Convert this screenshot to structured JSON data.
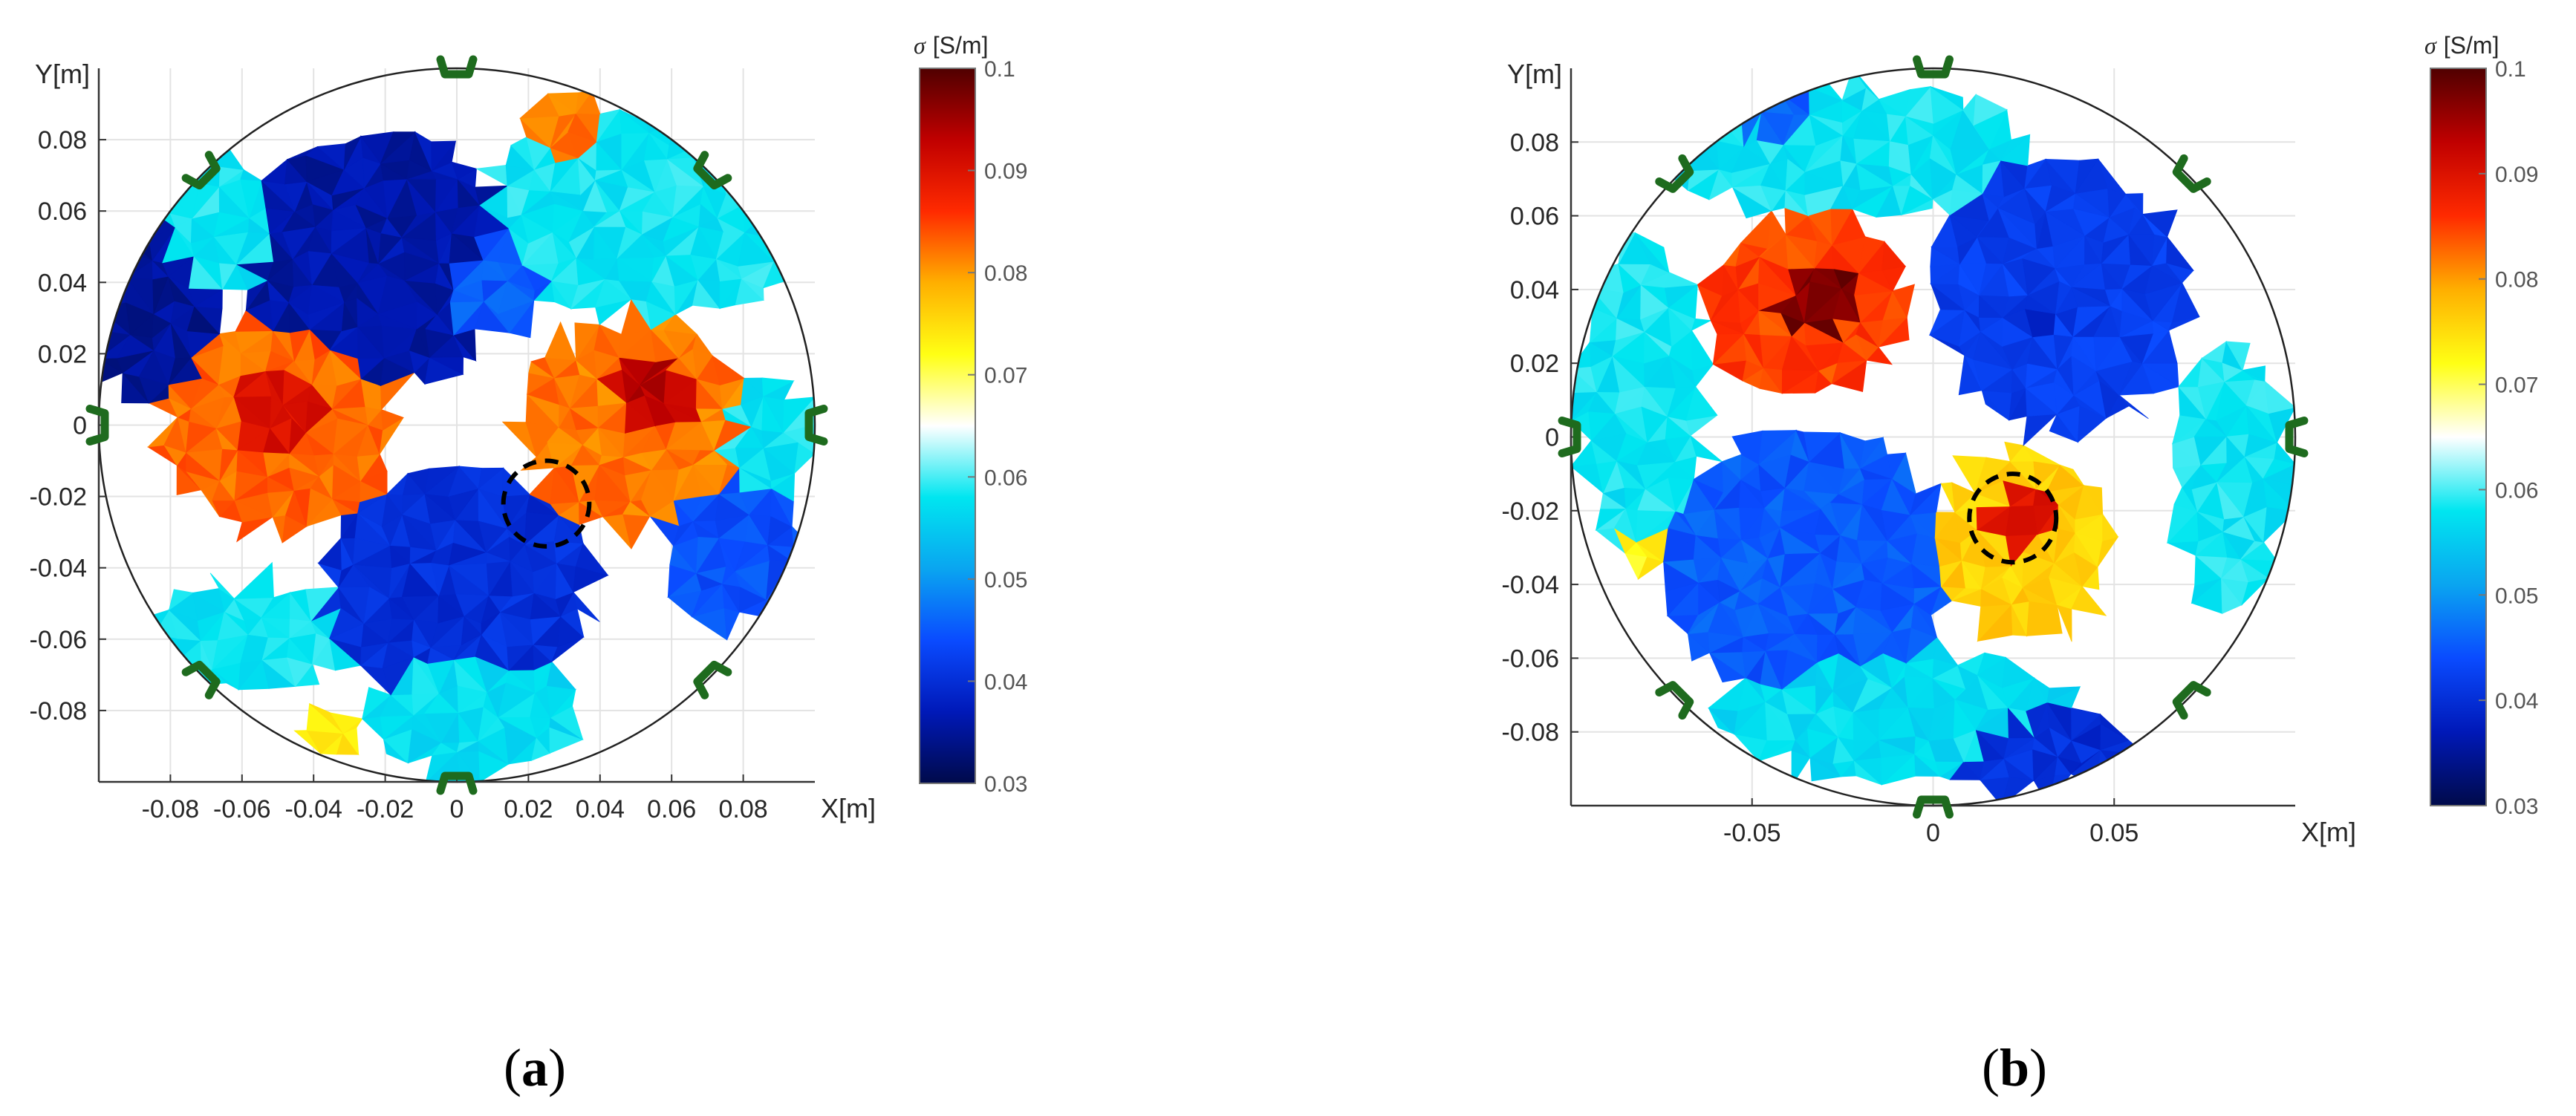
{
  "colors": {
    "background": "#ffffff",
    "grid": "#e3e3e3",
    "axis": "#333333",
    "boundary": "#222222",
    "electrode": "#1e6b1e",
    "inclusion_marker": "#000000"
  },
  "colormap_stops": [
    {
      "v": 0.0,
      "c": "#000a4a"
    },
    {
      "v": 0.1,
      "c": "#0019b8"
    },
    {
      "v": 0.2,
      "c": "#0a4bff"
    },
    {
      "v": 0.3,
      "c": "#0aa5f0"
    },
    {
      "v": 0.4,
      "c": "#00e6f0"
    },
    {
      "v": 0.5,
      "c": "#ffffff"
    },
    {
      "v": 0.6,
      "c": "#ffff14"
    },
    {
      "v": 0.7,
      "c": "#ffaf00"
    },
    {
      "v": 0.8,
      "c": "#ff2a00"
    },
    {
      "v": 0.9,
      "c": "#c00000"
    },
    {
      "v": 1.0,
      "c": "#500000"
    }
  ],
  "chart_data": [
    {
      "id": "a",
      "type": "heatmap",
      "caption": "a",
      "xlabel": "X[m]",
      "ylabel": "Y[m]",
      "xlim": [
        -0.1,
        0.1
      ],
      "ylim": [
        -0.1,
        0.1
      ],
      "xticks": [
        -0.08,
        -0.06,
        -0.04,
        -0.02,
        0,
        0.02,
        0.04,
        0.06,
        0.08
      ],
      "xtick_labels": [
        "-0.08",
        "-0.06",
        "-0.04",
        "-0.02",
        "0",
        "0.02",
        "0.04",
        "0.06",
        "0.08"
      ],
      "yticks": [
        0.08,
        0.06,
        0.04,
        0.02,
        0,
        -0.02,
        -0.04,
        -0.06,
        -0.08
      ],
      "ytick_labels": [
        "0.08",
        "0.06",
        "0.04",
        "0.02",
        "0",
        "-0.02",
        "-0.04",
        "-0.06",
        "-0.08"
      ],
      "grid": true,
      "domain_radius": 0.1,
      "electrode_count": 8,
      "colorbar": {
        "title_symbol": "σ",
        "title_unit": "[S/m]",
        "min": 0.03,
        "max": 0.1,
        "ticks": [
          0.1,
          0.09,
          0.08,
          0.07,
          0.06,
          0.05,
          0.04,
          0.03
        ],
        "tick_labels": [
          "0.1",
          "0.09",
          "0.08",
          "0.07",
          "0.06",
          "0.05",
          "0.04",
          "0.03"
        ]
      },
      "inclusion": {
        "x": 0.025,
        "y": -0.022,
        "r": 0.012
      },
      "background_sigma": 0.065,
      "regions": [
        {
          "name": "blue-upper-center",
          "x": -0.022,
          "y": 0.046,
          "rx": 0.038,
          "ry": 0.036,
          "sigma": 0.036
        },
        {
          "name": "blue-upper-center-shoulder",
          "x": 0.008,
          "y": 0.04,
          "rx": 0.018,
          "ry": 0.016,
          "sigma": 0.045
        },
        {
          "name": "blue-left-edge",
          "x": -0.085,
          "y": 0.035,
          "rx": 0.017,
          "ry": 0.032,
          "sigma": 0.035
        },
        {
          "name": "blue-lower-center",
          "x": 0.0,
          "y": -0.045,
          "rx": 0.038,
          "ry": 0.032,
          "sigma": 0.04
        },
        {
          "name": "blue-right-edge",
          "x": 0.078,
          "y": -0.035,
          "rx": 0.02,
          "ry": 0.022,
          "sigma": 0.044
        },
        {
          "name": "cyan-upper-right",
          "x": 0.052,
          "y": 0.058,
          "rx": 0.046,
          "ry": 0.028,
          "sigma": 0.058
        },
        {
          "name": "cyan-lower-left",
          "x": -0.06,
          "y": -0.06,
          "rx": 0.03,
          "ry": 0.016,
          "sigma": 0.058
        },
        {
          "name": "cyan-lower-center",
          "x": 0.005,
          "y": -0.08,
          "rx": 0.03,
          "ry": 0.018,
          "sigma": 0.057
        },
        {
          "name": "cyan-upper-left",
          "x": -0.068,
          "y": 0.056,
          "rx": 0.02,
          "ry": 0.02,
          "sigma": 0.058
        },
        {
          "name": "cyan-right-edge",
          "x": 0.086,
          "y": -0.005,
          "rx": 0.012,
          "ry": 0.02,
          "sigma": 0.058
        },
        {
          "name": "red-left",
          "x": -0.05,
          "y": 0.0,
          "rx": 0.034,
          "ry": 0.03,
          "sigma": 0.083
        },
        {
          "name": "red-left-core",
          "x": -0.05,
          "y": 0.004,
          "rx": 0.015,
          "ry": 0.014,
          "sigma": 0.09
        },
        {
          "name": "red-right",
          "x": 0.05,
          "y": 0.0,
          "rx": 0.032,
          "ry": 0.03,
          "sigma": 0.082
        },
        {
          "name": "red-right-core",
          "x": 0.055,
          "y": 0.008,
          "rx": 0.014,
          "ry": 0.012,
          "sigma": 0.093
        },
        {
          "name": "red-top-small",
          "x": 0.03,
          "y": 0.083,
          "rx": 0.01,
          "ry": 0.01,
          "sigma": 0.082
        },
        {
          "name": "yellow-bottom-small",
          "x": -0.035,
          "y": -0.085,
          "rx": 0.008,
          "ry": 0.007,
          "sigma": 0.074
        }
      ]
    },
    {
      "id": "b",
      "type": "heatmap",
      "caption": "b",
      "xlabel": "X[m]",
      "ylabel": "Y[m]",
      "xlim": [
        -0.1,
        0.1
      ],
      "ylim": [
        -0.1,
        0.1
      ],
      "xticks": [
        -0.05,
        0,
        0.05
      ],
      "xtick_labels": [
        "-0.05",
        "0",
        "0.05"
      ],
      "yticks": [
        0.08,
        0.06,
        0.04,
        0.02,
        0,
        -0.02,
        -0.04,
        -0.06,
        -0.08
      ],
      "ytick_labels": [
        "0.08",
        "0.06",
        "0.04",
        "0.02",
        "0",
        "-0.02",
        "-0.04",
        "-0.06",
        "-0.08"
      ],
      "grid": true,
      "domain_radius": 0.1,
      "electrode_count": 8,
      "colorbar": {
        "title_symbol": "σ",
        "title_unit": "[S/m]",
        "min": 0.03,
        "max": 0.1,
        "ticks": [
          0.1,
          0.09,
          0.08,
          0.07,
          0.06,
          0.05,
          0.04,
          0.03
        ],
        "tick_labels": [
          "0.1",
          "0.09",
          "0.08",
          "0.07",
          "0.06",
          "0.05",
          "0.04",
          "0.03"
        ]
      },
      "inclusion": {
        "x": 0.022,
        "y": -0.022,
        "r": 0.012
      },
      "background_sigma": 0.065,
      "regions": [
        {
          "name": "blue-upper-right",
          "x": 0.035,
          "y": 0.038,
          "rx": 0.036,
          "ry": 0.036,
          "sigma": 0.042
        },
        {
          "name": "blue-upper-right-core",
          "x": 0.03,
          "y": 0.03,
          "rx": 0.016,
          "ry": 0.014,
          "sigma": 0.038
        },
        {
          "name": "blue-lower-left",
          "x": -0.035,
          "y": -0.035,
          "rx": 0.04,
          "ry": 0.036,
          "sigma": 0.045
        },
        {
          "name": "blue-bottom-edge",
          "x": 0.03,
          "y": -0.085,
          "rx": 0.026,
          "ry": 0.012,
          "sigma": 0.04
        },
        {
          "name": "blue-top-left-edge",
          "x": -0.04,
          "y": 0.085,
          "rx": 0.018,
          "ry": 0.01,
          "sigma": 0.045
        },
        {
          "name": "cyan-top-band",
          "x": -0.025,
          "y": 0.078,
          "rx": 0.05,
          "ry": 0.018,
          "sigma": 0.058
        },
        {
          "name": "cyan-left-edge",
          "x": -0.08,
          "y": 0.01,
          "rx": 0.018,
          "ry": 0.045,
          "sigma": 0.058
        },
        {
          "name": "cyan-right-edge",
          "x": 0.082,
          "y": -0.01,
          "rx": 0.016,
          "ry": 0.036,
          "sigma": 0.058
        },
        {
          "name": "cyan-lower-band",
          "x": -0.01,
          "y": -0.075,
          "rx": 0.05,
          "ry": 0.018,
          "sigma": 0.057
        },
        {
          "name": "red-upper-left",
          "x": -0.035,
          "y": 0.035,
          "rx": 0.028,
          "ry": 0.025,
          "sigma": 0.085
        },
        {
          "name": "red-upper-left-core",
          "x": -0.032,
          "y": 0.038,
          "rx": 0.014,
          "ry": 0.012,
          "sigma": 0.097
        },
        {
          "name": "red-lower-right",
          "x": 0.025,
          "y": -0.028,
          "rx": 0.024,
          "ry": 0.025,
          "sigma": 0.076
        },
        {
          "name": "red-lower-right-core",
          "x": 0.025,
          "y": -0.022,
          "rx": 0.012,
          "ry": 0.01,
          "sigma": 0.09
        },
        {
          "name": "yellow-left-small",
          "x": -0.08,
          "y": -0.03,
          "rx": 0.008,
          "ry": 0.006,
          "sigma": 0.073
        }
      ]
    }
  ]
}
